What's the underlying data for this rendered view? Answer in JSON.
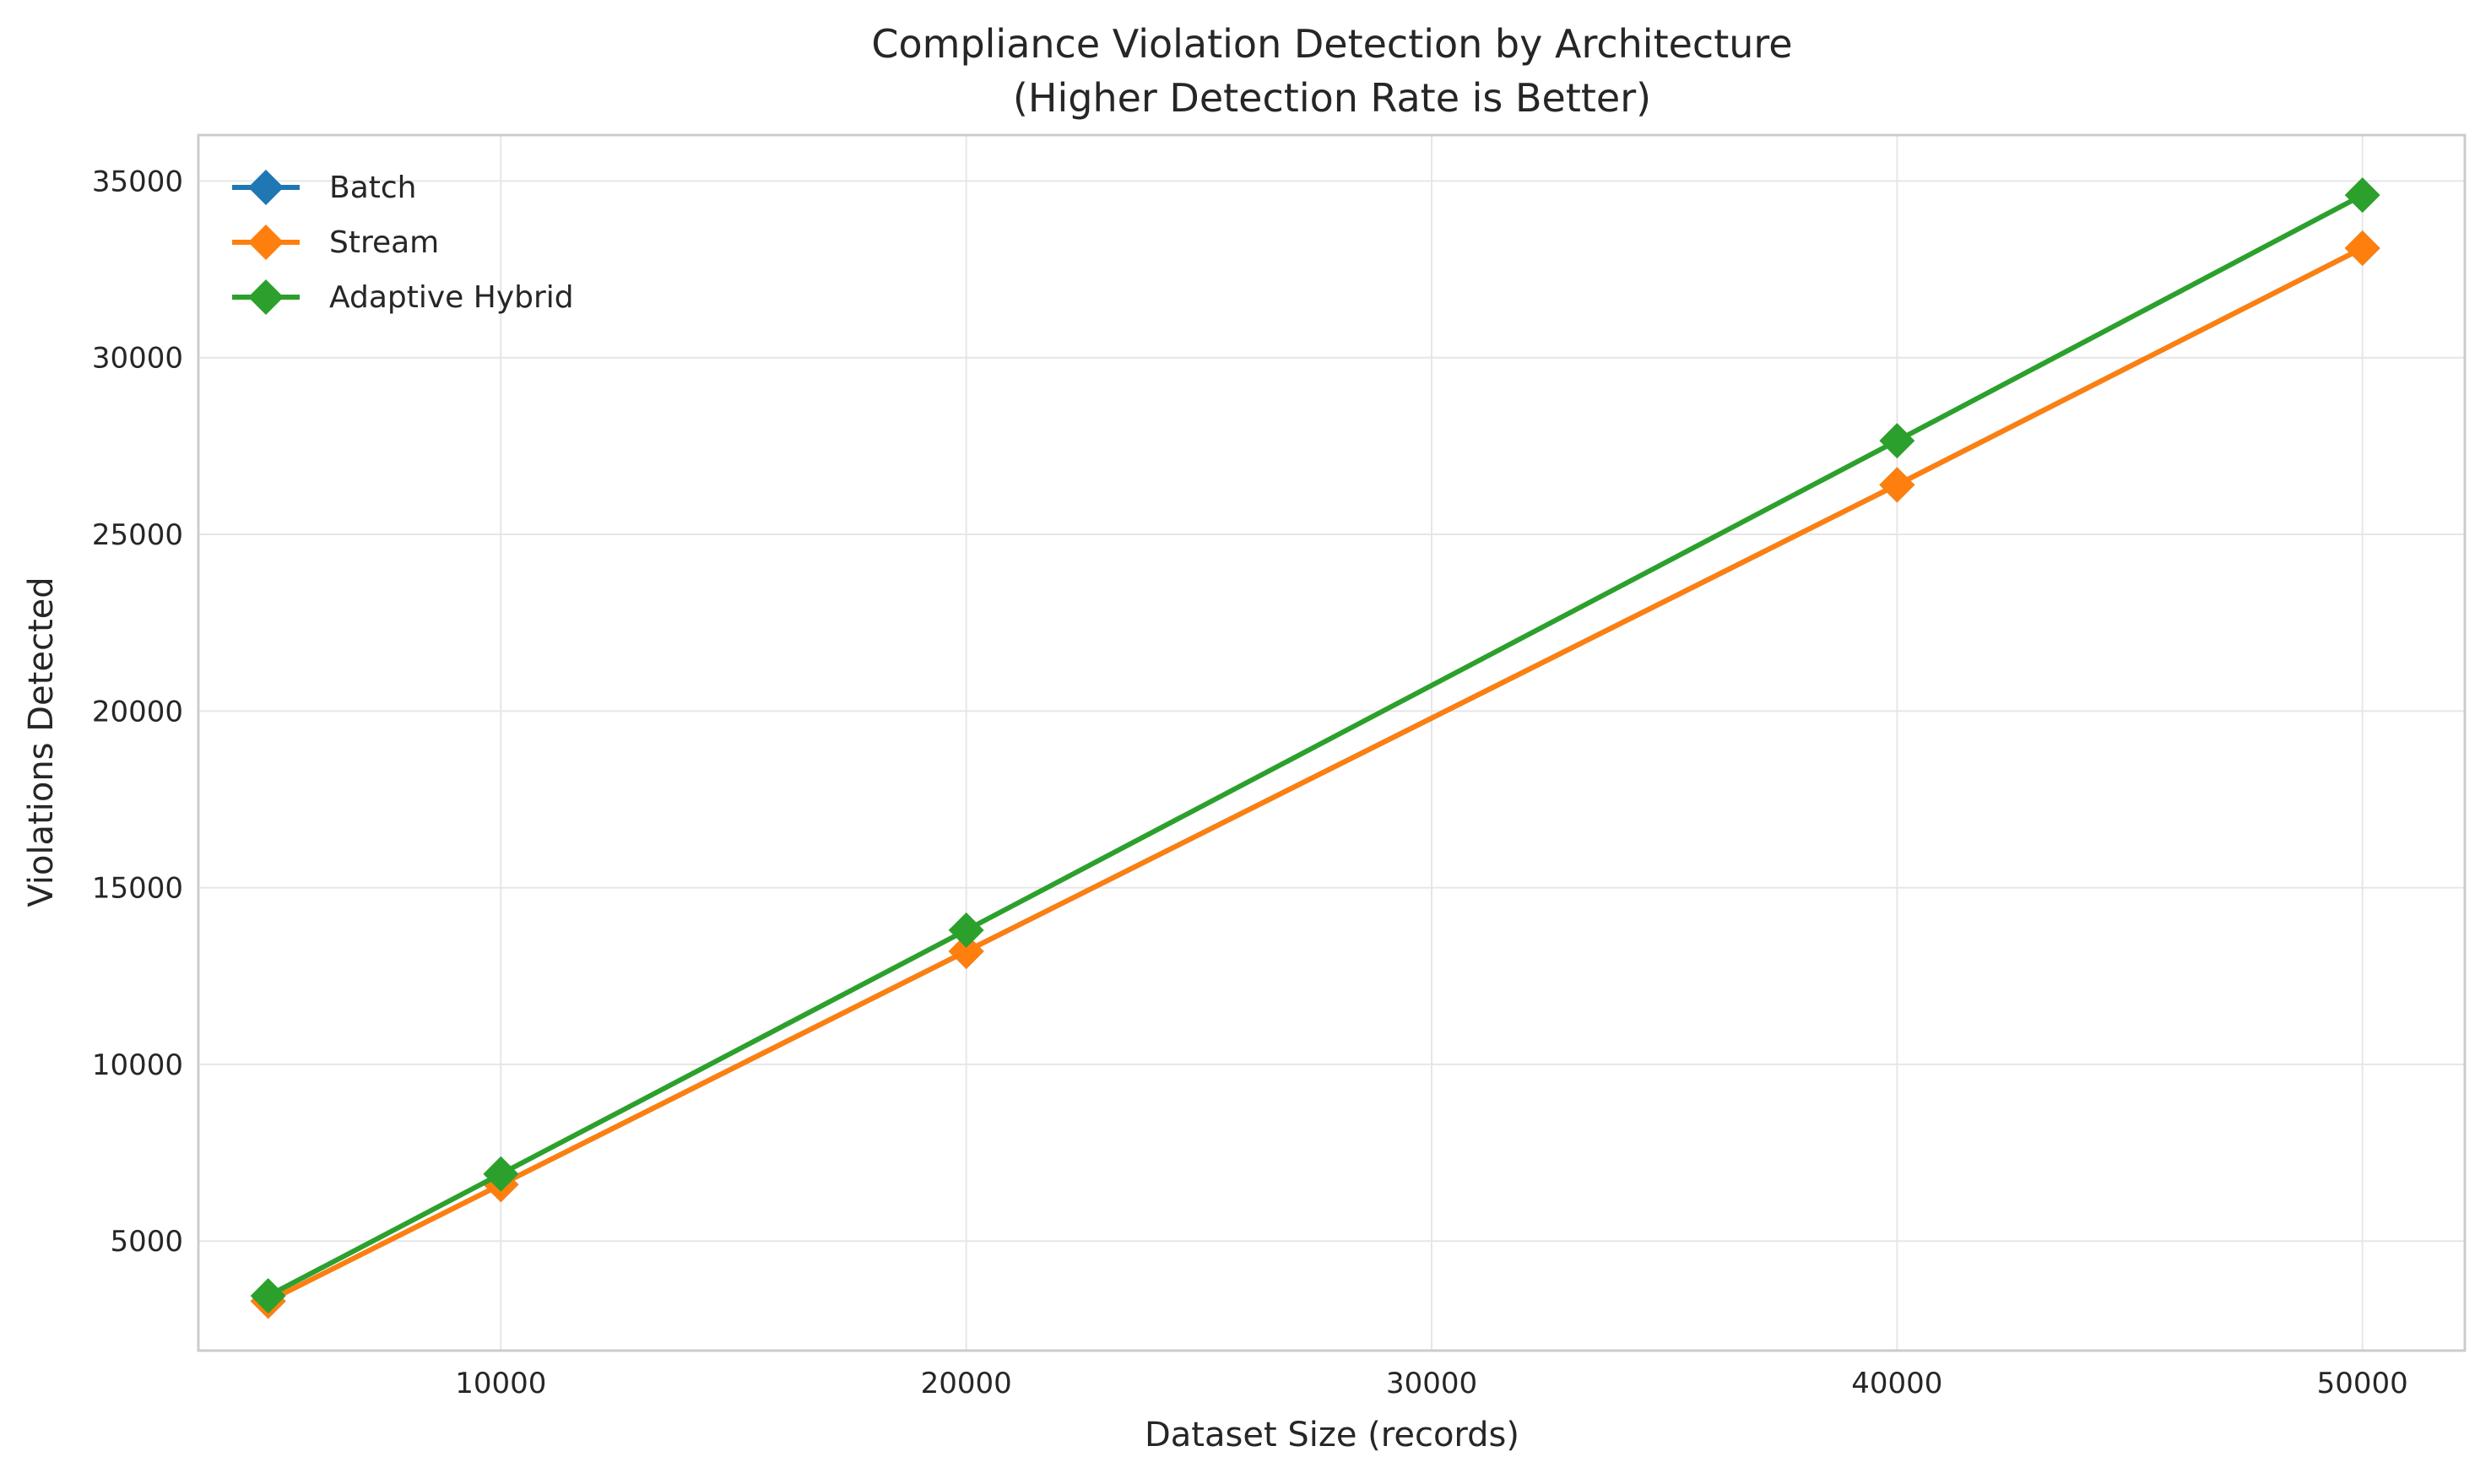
{
  "chart_data": {
    "type": "line",
    "title": "Compliance Violation Detection by Architecture",
    "subtitle": "(Higher Detection Rate is Better)",
    "xlabel": "Dataset Size (records)",
    "ylabel": "Violations Detected",
    "x": [
      5000,
      10000,
      20000,
      40000,
      50000
    ],
    "xlim": [
      3500,
      52200
    ],
    "ylim": [
      1900,
      36300
    ],
    "xticks": [
      10000,
      20000,
      30000,
      40000,
      50000
    ],
    "yticks": [
      5000,
      10000,
      15000,
      20000,
      25000,
      30000,
      35000
    ],
    "grid": true,
    "legend_position": "top-left",
    "marker": "diamond",
    "series": [
      {
        "name": "Batch",
        "color": "#1f77b4",
        "values": [
          3300,
          6600,
          13200,
          26400,
          33100
        ]
      },
      {
        "name": "Stream",
        "color": "#ff7f0e",
        "values": [
          3300,
          6600,
          13200,
          26400,
          33100
        ]
      },
      {
        "name": "Adaptive Hybrid",
        "color": "#2ca02c",
        "values": [
          3450,
          6900,
          13800,
          27650,
          34600
        ]
      }
    ]
  }
}
